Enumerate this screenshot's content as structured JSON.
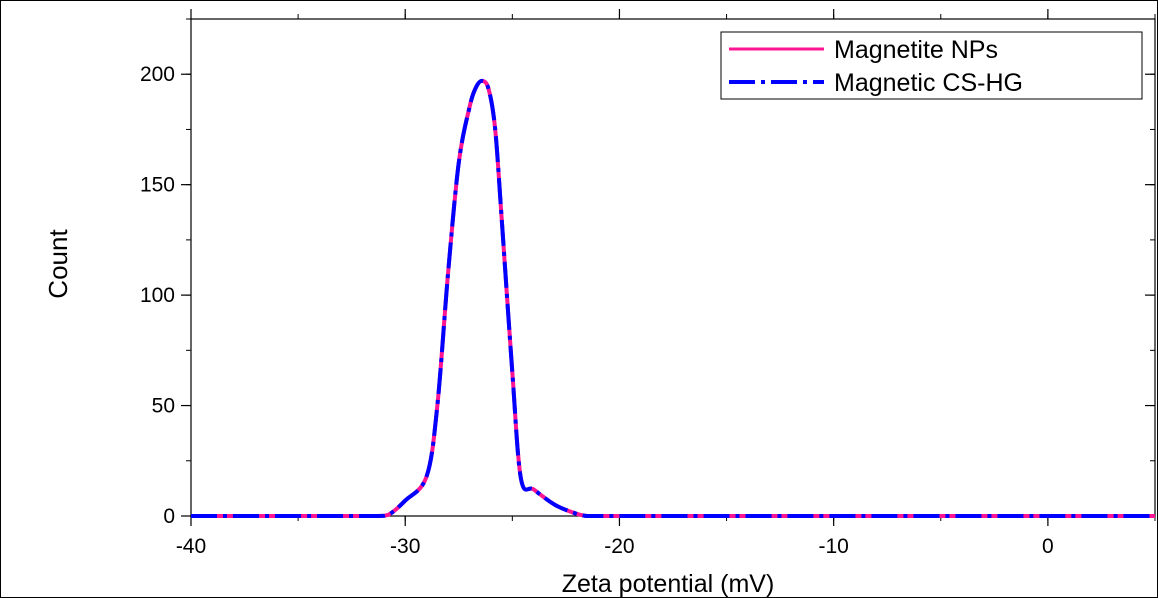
{
  "chart_data": {
    "type": "line",
    "xlabel": "Zeta potential (mV)",
    "ylabel": "Count",
    "xlim": [
      -40,
      5
    ],
    "ylim": [
      0,
      225
    ],
    "x_ticks": [
      -40,
      -30,
      -20,
      -10,
      0
    ],
    "x_tick_labels": [
      "-40",
      "-30",
      "-20",
      "-10",
      "0"
    ],
    "y_ticks": [
      0,
      50,
      100,
      150,
      200
    ],
    "y_tick_labels": [
      "0",
      "50",
      "100",
      "150",
      "200"
    ],
    "x_minor_step": 5,
    "y_minor_step": 25,
    "grid": false,
    "legend_position": "top-right",
    "x": [
      -40,
      -35,
      -31.5,
      -30.8,
      -30,
      -29,
      -28.5,
      -28,
      -27.5,
      -27,
      -26.7,
      -26.4,
      -26.1,
      -25.8,
      -25.5,
      -25,
      -24.6,
      -24,
      -23,
      -22,
      -21.5,
      -21,
      -15,
      -10,
      -5,
      0,
      5
    ],
    "series": [
      {
        "name": "Magnetite NPs",
        "color": "#ff1493",
        "line_style": "solid",
        "values": [
          0,
          0,
          0,
          0.5,
          7,
          18,
          50,
          110,
          160,
          185,
          194,
          197,
          193,
          175,
          135,
          65,
          17,
          12,
          5,
          1,
          0,
          0,
          0,
          0,
          0,
          0,
          0
        ]
      },
      {
        "name": "Magnetic CS-HG",
        "color": "#0000ff",
        "line_style": "dash-dot",
        "values": [
          0,
          0,
          0,
          0.5,
          7,
          18,
          50,
          110,
          160,
          185,
          194,
          197,
          193,
          175,
          135,
          65,
          17,
          12,
          5,
          1,
          0,
          0,
          0,
          0,
          0,
          0,
          0
        ]
      }
    ]
  }
}
